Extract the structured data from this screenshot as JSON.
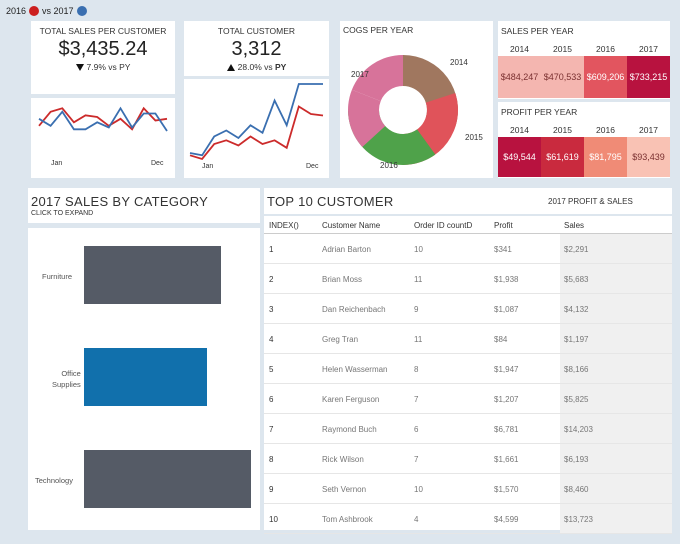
{
  "legend": {
    "year_a": "2016",
    "vs": "vs 2017",
    "color_a": "#cc1f1f",
    "color_b": "#3a6fb0"
  },
  "kpi_sales": {
    "title": "TOTAL SALES PER CUSTOMER",
    "value": "$3,435.24",
    "delta": "7.9% vs PY",
    "jan": "Jan",
    "dec": "Dec"
  },
  "kpi_customer": {
    "title": "TOTAL CUSTOMER",
    "value": "3,312",
    "delta": "28.0% vs",
    "delta_bold": "PY",
    "jan": "Jan",
    "dec": "Dec"
  },
  "cogs": {
    "title": "COGS PER YEAR",
    "labels": {
      "y2014": "2014",
      "y2015": "2015",
      "y2016": "2016",
      "y2017": "2017"
    },
    "colors": {
      "y2014": "#a0775f",
      "y2015": "#e0535a",
      "y2016": "#4fa24a",
      "y2017": "#d7739a"
    }
  },
  "sales_year": {
    "title": "SALES PER YEAR",
    "years": [
      "2014",
      "2015",
      "2016",
      "2017"
    ],
    "values": [
      "$484,247",
      "$470,533",
      "$609,206",
      "$733,215"
    ],
    "colors": [
      "#f4b6b0",
      "#f4b6b0",
      "#e2555f",
      "#b8123f"
    ]
  },
  "profit_year": {
    "title": "PROFIT PER YEAR",
    "years": [
      "2014",
      "2015",
      "2016",
      "2017"
    ],
    "values": [
      "$49,544",
      "$61,619",
      "$81,795",
      "$93,439"
    ],
    "colors": [
      "#b8123f",
      "#c92a3e",
      "#f08b76",
      "#f9c2b4"
    ]
  },
  "category": {
    "title": "2017 SALES BY CATEGORY",
    "subtitle": "CLICK TO EXPAND",
    "labels": [
      "Furniture",
      "Office\nSupplies",
      "Technology"
    ],
    "values": [
      0.78,
      0.7,
      0.95
    ],
    "colors": [
      "#555b66",
      "#1170ac",
      "#555b66"
    ]
  },
  "top10": {
    "title": "TOP 10 CUSTOMER",
    "subtitle": "2017 PROFIT & SALES",
    "headers": [
      "INDEX()",
      "Customer Name",
      "Order ID countD",
      "Profit",
      "Sales"
    ],
    "rows": [
      [
        "1",
        "Adrian Barton",
        "10",
        "$341",
        "$2,291"
      ],
      [
        "2",
        "Brian Moss",
        "11",
        "$1,938",
        "$5,683"
      ],
      [
        "3",
        "Dan Reichenbach",
        "9",
        "$1,087",
        "$4,132"
      ],
      [
        "4",
        "Greg Tran",
        "11",
        "$84",
        "$1,197"
      ],
      [
        "5",
        "Helen Wasserman",
        "8",
        "$1,947",
        "$8,166"
      ],
      [
        "6",
        "Karen Ferguson",
        "7",
        "$1,207",
        "$5,825"
      ],
      [
        "7",
        "Raymond Buch",
        "6",
        "$6,781",
        "$14,203"
      ],
      [
        "8",
        "Rick Wilson",
        "7",
        "$1,661",
        "$6,193"
      ],
      [
        "9",
        "Seth Vernon",
        "10",
        "$1,570",
        "$8,460"
      ],
      [
        "10",
        "Tom Ashbrook",
        "4",
        "$4,599",
        "$13,723"
      ]
    ]
  },
  "chart_data": [
    {
      "type": "line",
      "title": "TOTAL SALES PER CUSTOMER",
      "series": [
        {
          "name": "2016",
          "values": [
            0.35,
            0.75,
            0.85,
            0.45,
            0.65,
            0.6,
            0.35,
            0.55,
            0.25,
            0.85,
            0.5,
            0.55
          ]
        },
        {
          "name": "2017",
          "values": [
            0.55,
            0.35,
            0.75,
            0.25,
            0.25,
            0.45,
            0.3,
            0.85,
            0.3,
            0.7,
            0.7,
            0.2
          ]
        }
      ],
      "xlabel": "",
      "ylabel": ""
    },
    {
      "type": "line",
      "title": "TOTAL CUSTOMER",
      "series": [
        {
          "name": "2016",
          "values": [
            0.05,
            0.0,
            0.2,
            0.25,
            0.18,
            0.3,
            0.2,
            0.25,
            0.15,
            0.7,
            0.6,
            0.58
          ]
        },
        {
          "name": "2017",
          "values": [
            0.08,
            0.05,
            0.3,
            0.38,
            0.28,
            0.45,
            0.35,
            0.78,
            0.45,
            1.0,
            1.0,
            1.0
          ]
        }
      ]
    },
    {
      "type": "pie",
      "title": "COGS PER YEAR",
      "categories": [
        "2014",
        "2015",
        "2016",
        "2017"
      ],
      "values": [
        22,
        20,
        27,
        31
      ]
    },
    {
      "type": "bar",
      "title": "2017 SALES BY CATEGORY",
      "categories": [
        "Furniture",
        "Office Supplies",
        "Technology"
      ],
      "values": [
        0.78,
        0.7,
        0.95
      ]
    }
  ]
}
